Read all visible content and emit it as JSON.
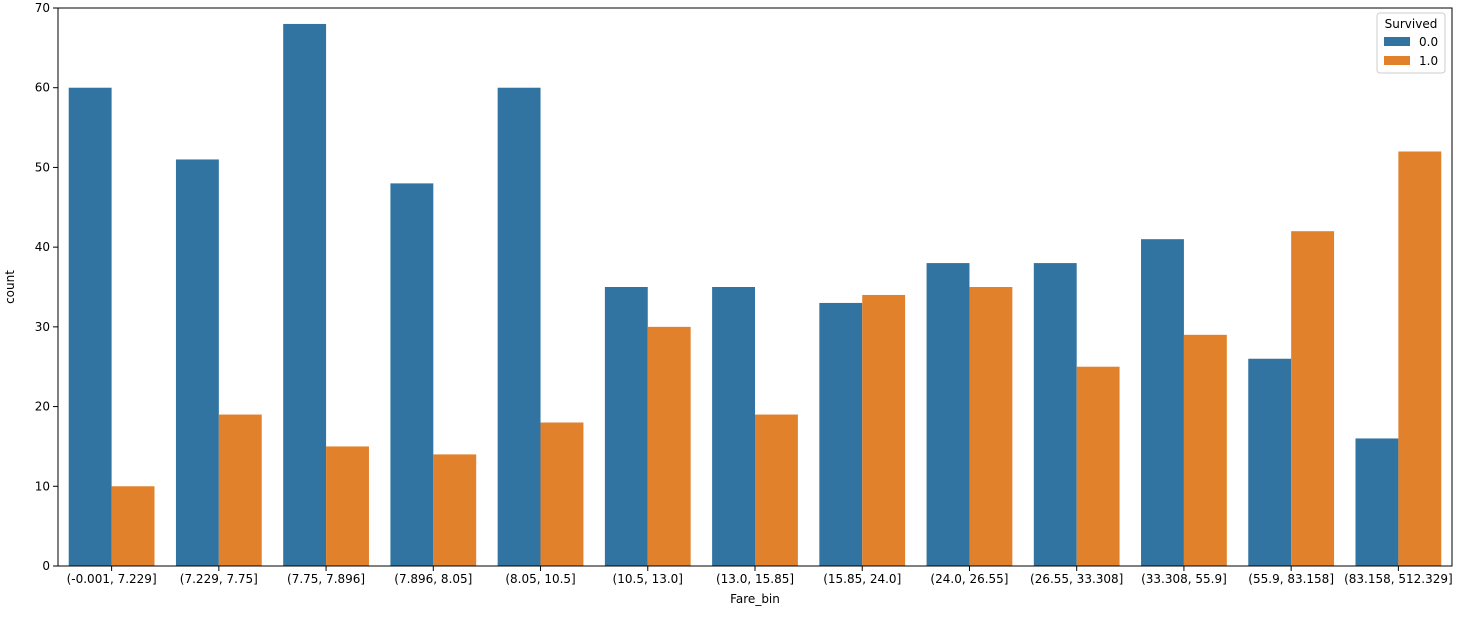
{
  "chart_data": {
    "type": "bar",
    "xlabel": "Fare_bin",
    "ylabel": "count",
    "ylim": [
      0,
      70
    ],
    "yticks": [
      0,
      10,
      20,
      30,
      40,
      50,
      60,
      70
    ],
    "grid": false,
    "categories": [
      "(-0.001, 7.229]",
      "(7.229, 7.75]",
      "(7.75, 7.896]",
      "(7.896, 8.05]",
      "(8.05, 10.5]",
      "(10.5, 13.0]",
      "(13.0, 15.85]",
      "(15.85, 24.0]",
      "(24.0, 26.55]",
      "(26.55, 33.308]",
      "(33.308, 55.9]",
      "(55.9, 83.158]",
      "(83.158, 512.329]"
    ],
    "series": [
      {
        "name": "0.0",
        "color": "#3274a1",
        "values": [
          60,
          51,
          68,
          48,
          60,
          35,
          35,
          33,
          38,
          38,
          41,
          26,
          16
        ]
      },
      {
        "name": "1.0",
        "color": "#e1812c",
        "values": [
          10,
          19,
          15,
          14,
          18,
          30,
          19,
          34,
          35,
          25,
          29,
          42,
          52
        ]
      }
    ],
    "legend": {
      "title": "Survived",
      "placement": "top-right"
    }
  }
}
